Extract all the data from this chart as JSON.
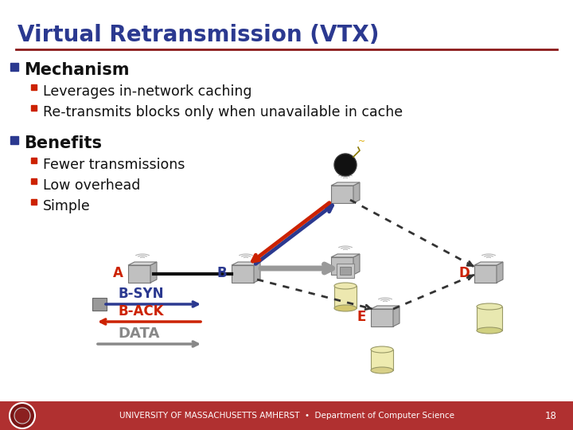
{
  "title": "Virtual Retransmission (VTX)",
  "title_color": "#2B3990",
  "title_fontsize": 20,
  "separator_color": "#8B1A1A",
  "bg_color": "#FFFFFF",
  "bullet_color": "#2B3990",
  "bullet_red_color": "#CC2200",
  "section1": "Mechanism",
  "section1_items": [
    "Leverages in-network caching",
    "Re-transmits blocks only when unavailable in cache"
  ],
  "section2": "Benefits",
  "section2_items": [
    "Fewer transmissions",
    "Low overhead",
    "Simple"
  ],
  "section_fontsize": 15,
  "item_fontsize": 12.5,
  "footer_bg": "#B03030",
  "footer_text": "UNIVERSITY OF MASSACHUSETTS AMHERST  •  Department of Computer Science",
  "footer_number": "18",
  "footer_fontsize": 7.5
}
